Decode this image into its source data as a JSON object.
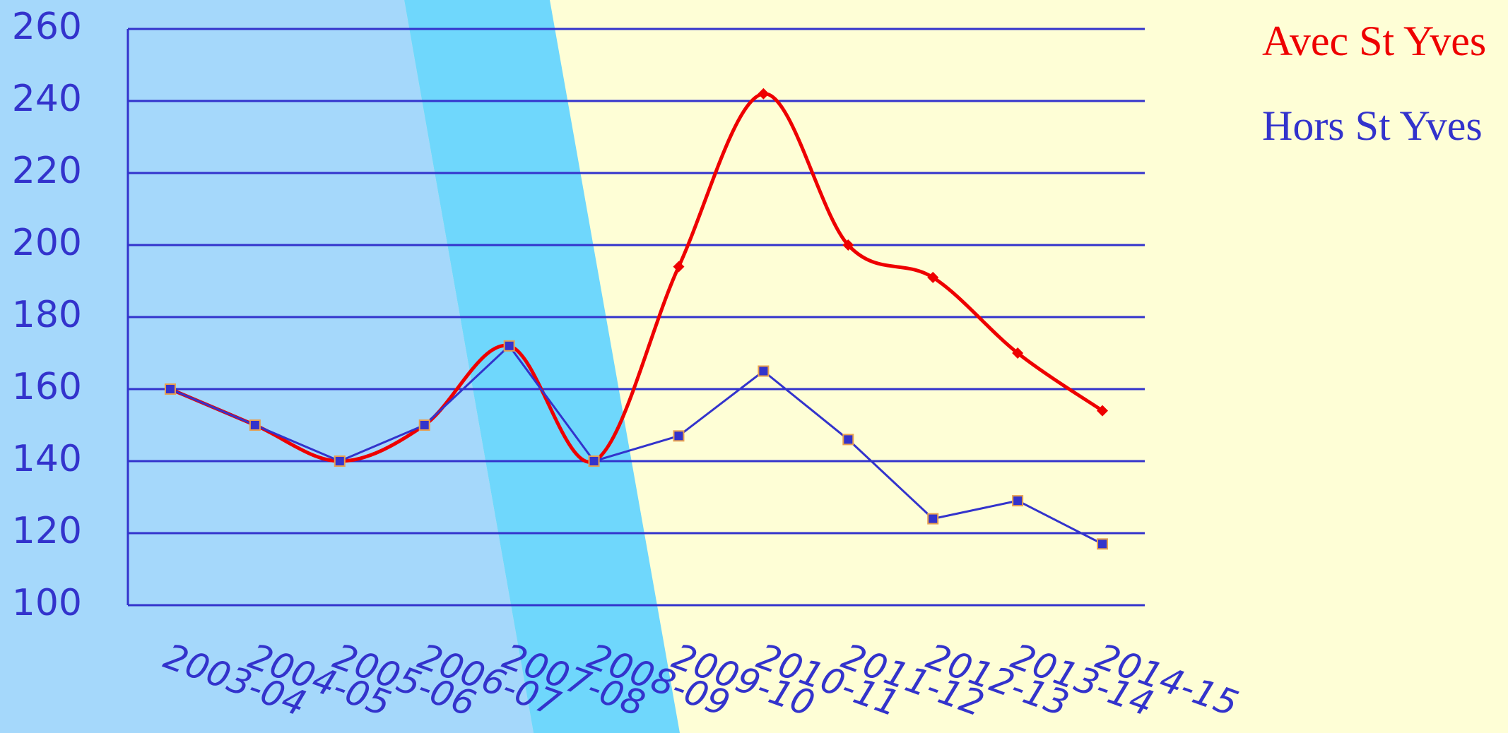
{
  "chart_data": {
    "type": "line",
    "categories": [
      "2003-04",
      "2004-05",
      "2005-06",
      "2006-07",
      "2007-08",
      "2008-09",
      "2009-10",
      "2010-11",
      "2011-12",
      "2012-13",
      "2013-14",
      "2014-15"
    ],
    "series": [
      {
        "name": "Avec St Yves",
        "color": "#ee0000",
        "smooth": true,
        "marker": "diamond",
        "values": [
          160,
          150,
          140,
          150,
          172,
          140,
          194,
          242,
          200,
          191,
          170,
          154
        ]
      },
      {
        "name": "Hors St Yves",
        "color": "#3333cc",
        "smooth": false,
        "marker": "square",
        "values": [
          160,
          150,
          140,
          150,
          172,
          140,
          147,
          165,
          146,
          124,
          129,
          117
        ]
      }
    ],
    "ylim": [
      100,
      260
    ],
    "yticks": [
      100,
      120,
      140,
      160,
      180,
      200,
      220,
      240,
      260
    ],
    "grid": true,
    "legend": "top-right"
  }
}
